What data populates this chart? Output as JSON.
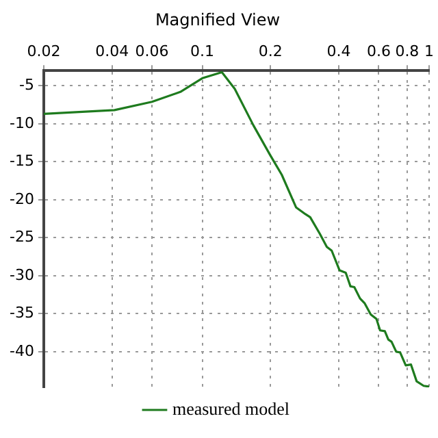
{
  "chart_data": {
    "type": "line",
    "title": "Magnified View",
    "log": "x",
    "xlim": [
      0.02,
      1
    ],
    "xticks": [
      0.02,
      0.04,
      0.06,
      0.1,
      0.2,
      0.4,
      0.6,
      0.8,
      1
    ],
    "ylim": [
      -44.7,
      -3
    ],
    "yticks": [
      -5,
      -10,
      -15,
      -20,
      -25,
      -30,
      -35,
      -40
    ],
    "grid": true,
    "legend": "bottom",
    "marker": "none",
    "line_style": "solid",
    "series": [
      {
        "name": "measured model",
        "color": "#1e7b1e",
        "x": [
          0.02,
          0.041,
          0.06,
          0.08,
          0.1,
          0.122,
          0.139,
          0.168,
          0.199,
          0.224,
          0.259,
          0.285,
          0.299,
          0.33,
          0.354,
          0.372,
          0.403,
          0.429,
          0.45,
          0.468,
          0.496,
          0.519,
          0.553,
          0.586,
          0.608,
          0.638,
          0.661,
          0.683,
          0.716,
          0.745,
          0.789,
          0.832,
          0.881,
          0.946,
          1.0
        ],
        "values": [
          -8.7,
          -8.2,
          -7.1,
          -5.8,
          -4.0,
          -3.2,
          -5.4,
          -10.2,
          -14.1,
          -16.7,
          -21.0,
          -21.9,
          -22.3,
          -24.5,
          -26.2,
          -26.7,
          -29.3,
          -29.6,
          -31.4,
          -31.5,
          -33.0,
          -33.6,
          -35.1,
          -35.7,
          -37.2,
          -37.3,
          -38.4,
          -38.7,
          -40.0,
          -40.1,
          -41.8,
          -41.7,
          -43.9,
          -44.5,
          -44.6
        ]
      }
    ]
  }
}
